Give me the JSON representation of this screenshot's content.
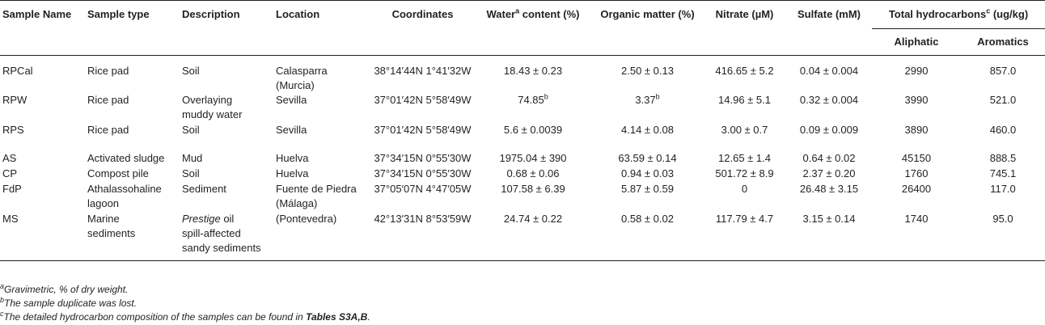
{
  "header": {
    "sample_name": "Sample Name",
    "sample_type": "Sample type",
    "description": "Description",
    "location": "Location",
    "coordinates": "Coordinates",
    "water_pre": "Water",
    "water_sup": "a",
    "water_post": " content (%)",
    "organic": "Organic matter (%)",
    "nitrate": "Nitrate (µM)",
    "sulfate": "Sulfate (mM)",
    "total_pre": "Total hydrocarbons",
    "total_sup": "c",
    "total_post": " (ug/kg)",
    "aliphatic": "Aliphatic",
    "aromatics": "Aromatics"
  },
  "rows": [
    {
      "name": "RPCal",
      "type": [
        "Rice pad"
      ],
      "desc": [
        "Soil"
      ],
      "loc": [
        "Calasparra",
        "(Murcia)"
      ],
      "coord": "38°14′44N 1°41′32W",
      "water": "18.43 ± 0.23",
      "water_sup": "",
      "organic": "2.50 ± 0.13",
      "organic_sup": "",
      "nitrate": "416.65 ± 5.2",
      "sulfate": "0.04 ± 0.004",
      "aliphatic": "2990",
      "aromatics": "857.0"
    },
    {
      "name": "RPW",
      "type": [
        "Rice pad"
      ],
      "desc": [
        "Overlaying",
        "muddy water"
      ],
      "loc": [
        "Sevilla"
      ],
      "coord": "37°01′42N 5°58′49W",
      "water": "74.85",
      "water_sup": "b",
      "organic": "3.37",
      "organic_sup": "b",
      "nitrate": "14.96 ± 5.1",
      "sulfate": "0.32 ± 0.004",
      "aliphatic": "3990",
      "aromatics": "521.0"
    },
    {
      "name": "RPS",
      "type": [
        "Rice pad"
      ],
      "desc": [
        "Soil"
      ],
      "loc": [
        "Sevilla"
      ],
      "coord": "37°01′42N 5°58′49W",
      "water": "5.6 ± 0.0039",
      "water_sup": "",
      "organic": "4.14 ± 0.08",
      "organic_sup": "",
      "nitrate": "3.00 ± 0.7",
      "sulfate": "0.09 ± 0.009",
      "aliphatic": "3890",
      "aromatics": "460.0"
    },
    {
      "name": "AS",
      "type": [
        "Activated sludge"
      ],
      "desc": [
        "Mud"
      ],
      "loc": [
        "Huelva"
      ],
      "coord": "37°34′15N 0°55′30W",
      "water": "1975.04 ± 390",
      "water_sup": "",
      "organic": "63.59 ± 0.14",
      "organic_sup": "",
      "nitrate": "12.65 ± 1.4",
      "sulfate": "0.64 ± 0.02",
      "aliphatic": "45150",
      "aromatics": "888.5"
    },
    {
      "name": "CP",
      "type": [
        "Compost pile"
      ],
      "desc": [
        "Soil"
      ],
      "loc": [
        "Huelva"
      ],
      "coord": "37°34′15N 0°55′30W",
      "water": "0.68 ± 0.06",
      "water_sup": "",
      "organic": "0.94 ± 0.03",
      "organic_sup": "",
      "nitrate": "501.72 ± 8.9",
      "sulfate": "2.37 ± 0.20",
      "aliphatic": "1760",
      "aromatics": "745.1"
    },
    {
      "name": "FdP",
      "type": [
        "Athalassohaline",
        "lagoon"
      ],
      "desc": [
        "Sediment"
      ],
      "loc": [
        "Fuente de Piedra",
        "(Málaga)"
      ],
      "coord": "37°05′07N 4°47′05W",
      "water": "107.58 ± 6.39",
      "water_sup": "",
      "organic": "5.87 ± 0.59",
      "organic_sup": "",
      "nitrate": "0",
      "sulfate": "26.48 ± 3.15",
      "aliphatic": "26400",
      "aromatics": "117.0"
    },
    {
      "name": "MS",
      "type": [
        "Marine",
        "sediments"
      ],
      "desc_italic": "Prestige",
      "desc": [
        " oil",
        "spill-affected",
        "sandy sediments"
      ],
      "loc": [
        "(Pontevedra)"
      ],
      "coord": "42°13′31N 8°53′59W",
      "water": "24.74 ± 0.22",
      "water_sup": "",
      "organic": "0.58 ± 0.02",
      "organic_sup": "",
      "nitrate": "117.79 ± 4.7",
      "sulfate": "3.15 ± 0.14",
      "aliphatic": "1740",
      "aromatics": "95.0"
    }
  ],
  "footnotes": {
    "a_mark": "a",
    "a_text": "Gravimetric, % of dry weight.",
    "b_mark": "b",
    "b_text": "The sample duplicate was lost.",
    "c_mark": "c",
    "c_text_pre": "The detailed hydrocarbon composition of the samples can be found in ",
    "c_text_bold": "Tables S3A,B",
    "c_text_post": "."
  }
}
